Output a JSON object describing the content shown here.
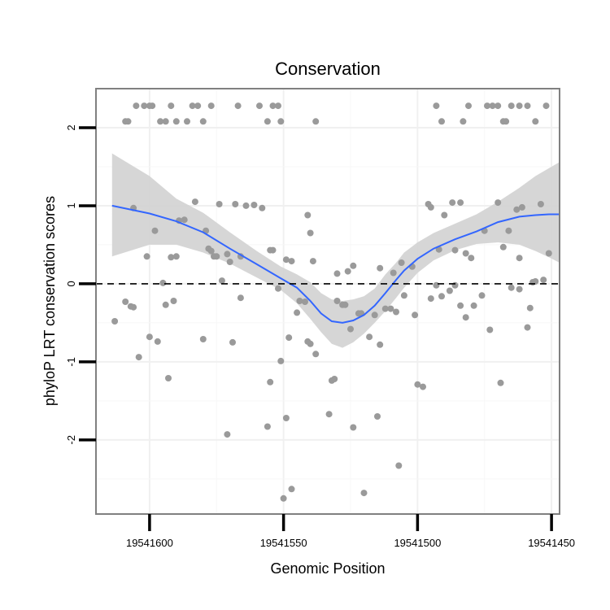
{
  "chart_data": {
    "type": "scatter",
    "title": "Conservation",
    "xlabel": "Genomic Position",
    "ylabel": "phyloP LRT conservation scores",
    "x_reversed": true,
    "xlim": [
      19541620,
      19541447
    ],
    "ylim": [
      -2.95,
      2.5
    ],
    "x_ticks": [
      19541600,
      19541550,
      19541500,
      19541450
    ],
    "x_tick_labels": [
      "19541600",
      "19541550",
      "19541500",
      "19541450"
    ],
    "y_ticks": [
      -2,
      -1,
      0,
      1,
      2
    ],
    "y_tick_labels": [
      "-2",
      "-1",
      "0",
      "1",
      "2"
    ],
    "reference_line": {
      "y": 0,
      "style": "dashed"
    },
    "points": [
      [
        19541609,
        2.08
      ],
      [
        19541608,
        2.08
      ],
      [
        19541605,
        2.28
      ],
      [
        19541602,
        2.28
      ],
      [
        19541600,
        2.28
      ],
      [
        19541599,
        2.28
      ],
      [
        19541596,
        2.08
      ],
      [
        19541594,
        2.08
      ],
      [
        19541592,
        2.28
      ],
      [
        19541590,
        2.08
      ],
      [
        19541586,
        2.08
      ],
      [
        19541584,
        2.28
      ],
      [
        19541582,
        2.28
      ],
      [
        19541580,
        2.08
      ],
      [
        19541577,
        2.28
      ],
      [
        19541567,
        2.28
      ],
      [
        19541559,
        2.28
      ],
      [
        19541556,
        2.08
      ],
      [
        19541554,
        2.28
      ],
      [
        19541552,
        2.28
      ],
      [
        19541551,
        2.08
      ],
      [
        19541538,
        2.08
      ],
      [
        19541493,
        2.28
      ],
      [
        19541491,
        2.08
      ],
      [
        19541483,
        2.08
      ],
      [
        19541481,
        2.28
      ],
      [
        19541474,
        2.28
      ],
      [
        19541472,
        2.28
      ],
      [
        19541470,
        2.28
      ],
      [
        19541468,
        2.08
      ],
      [
        19541467,
        2.08
      ],
      [
        19541465,
        2.28
      ],
      [
        19541462,
        2.28
      ],
      [
        19541459,
        2.28
      ],
      [
        19541456,
        2.08
      ],
      [
        19541452,
        2.28
      ],
      [
        19541606,
        0.97
      ],
      [
        19541601,
        0.35
      ],
      [
        19541598,
        0.68
      ],
      [
        19541592,
        0.34
      ],
      [
        19541590,
        0.35
      ],
      [
        19541587,
        0.82
      ],
      [
        19541583,
        1.05
      ],
      [
        19541579,
        0.68
      ],
      [
        19541578,
        0.45
      ],
      [
        19541577,
        0.42
      ],
      [
        19541575,
        0.35
      ],
      [
        19541574,
        1.02
      ],
      [
        19541573,
        0.04
      ],
      [
        19541571,
        0.38
      ],
      [
        19541570,
        0.28
      ],
      [
        19541568,
        1.02
      ],
      [
        19541566,
        0.35
      ],
      [
        19541564,
        1.0
      ],
      [
        19541561,
        1.01
      ],
      [
        19541558,
        0.97
      ],
      [
        19541555,
        0.43
      ],
      [
        19541554,
        0.43
      ],
      [
        19541549,
        0.31
      ],
      [
        19541547,
        0.29
      ],
      [
        19541541,
        0.88
      ],
      [
        19541540,
        0.65
      ],
      [
        19541539,
        0.29
      ],
      [
        19541530,
        0.13
      ],
      [
        19541526,
        0.16
      ],
      [
        19541524,
        0.23
      ],
      [
        19541514,
        0.2
      ],
      [
        19541509,
        0.14
      ],
      [
        19541506,
        0.27
      ],
      [
        19541502,
        0.22
      ],
      [
        19541496,
        1.02
      ],
      [
        19541495,
        0.98
      ],
      [
        19541492,
        0.44
      ],
      [
        19541490,
        0.88
      ],
      [
        19541487,
        1.04
      ],
      [
        19541486,
        0.43
      ],
      [
        19541484,
        1.04
      ],
      [
        19541482,
        0.39
      ],
      [
        19541480,
        0.33
      ],
      [
        19541475,
        0.68
      ],
      [
        19541470,
        1.04
      ],
      [
        19541468,
        0.47
      ],
      [
        19541466,
        0.68
      ],
      [
        19541463,
        0.95
      ],
      [
        19541462,
        0.33
      ],
      [
        19541461,
        0.98
      ],
      [
        19541456,
        0.03
      ],
      [
        19541454,
        1.02
      ],
      [
        19541453,
        0.05
      ],
      [
        19541451,
        0.39
      ],
      [
        19541613,
        -0.48
      ],
      [
        19541609,
        -0.23
      ],
      [
        19541607,
        -0.29
      ],
      [
        19541606,
        -0.3
      ],
      [
        19541604,
        -0.94
      ],
      [
        19541600,
        -0.68
      ],
      [
        19541597,
        -0.74
      ],
      [
        19541595,
        0.01
      ],
      [
        19541594,
        -0.27
      ],
      [
        19541593,
        -1.21
      ],
      [
        19541591,
        -0.22
      ],
      [
        19541589,
        0.81
      ],
      [
        19541580,
        -0.71
      ],
      [
        19541576,
        0.35
      ],
      [
        19541571,
        -1.93
      ],
      [
        19541569,
        -0.75
      ],
      [
        19541566,
        -0.18
      ],
      [
        19541556,
        -1.83
      ],
      [
        19541555,
        -1.26
      ],
      [
        19541552,
        -0.06
      ],
      [
        19541551,
        -0.99
      ],
      [
        19541550,
        -2.75
      ],
      [
        19541549,
        -1.72
      ],
      [
        19541548,
        -0.69
      ],
      [
        19541547,
        -2.63
      ],
      [
        19541545,
        -0.37
      ],
      [
        19541544,
        -0.22
      ],
      [
        19541542,
        -0.23
      ],
      [
        19541541,
        -0.74
      ],
      [
        19541540,
        -0.77
      ],
      [
        19541538,
        -0.9
      ],
      [
        19541533,
        -1.67
      ],
      [
        19541532,
        -1.24
      ],
      [
        19541531,
        -1.22
      ],
      [
        19541530,
        -0.22
      ],
      [
        19541528,
        -0.27
      ],
      [
        19541527,
        -0.27
      ],
      [
        19541525,
        -0.58
      ],
      [
        19541524,
        -1.84
      ],
      [
        19541522,
        -0.38
      ],
      [
        19541521,
        -0.38
      ],
      [
        19541520,
        -2.68
      ],
      [
        19541518,
        -0.68
      ],
      [
        19541516,
        -0.4
      ],
      [
        19541515,
        -1.7
      ],
      [
        19541514,
        -0.78
      ],
      [
        19541512,
        -0.32
      ],
      [
        19541510,
        -0.32
      ],
      [
        19541508,
        -0.36
      ],
      [
        19541507,
        -2.33
      ],
      [
        19541505,
        -0.15
      ],
      [
        19541501,
        -0.4
      ],
      [
        19541500,
        -1.29
      ],
      [
        19541498,
        -1.32
      ],
      [
        19541495,
        -0.19
      ],
      [
        19541493,
        -0.02
      ],
      [
        19541491,
        -0.16
      ],
      [
        19541488,
        -0.09
      ],
      [
        19541486,
        -0.02
      ],
      [
        19541484,
        -0.28
      ],
      [
        19541482,
        -0.43
      ],
      [
        19541479,
        -0.28
      ],
      [
        19541476,
        -0.15
      ],
      [
        19541473,
        -0.59
      ],
      [
        19541469,
        -1.27
      ],
      [
        19541465,
        -0.05
      ],
      [
        19541462,
        -0.07
      ],
      [
        19541459,
        -0.56
      ],
      [
        19541458,
        -0.31
      ],
      [
        19541457,
        0.02
      ]
    ],
    "smooth_line": {
      "x": [
        19541614,
        19541600,
        19541590,
        19541580,
        19541570,
        19541560,
        19541551,
        19541545,
        19541540,
        19541536,
        19541532,
        19541528,
        19541524,
        19541520,
        19541516,
        19541512,
        19541508,
        19541505,
        19541500,
        19541494,
        19541486,
        19541478,
        19541470,
        19541462,
        19541456,
        19541451,
        19541447
      ],
      "y": [
        1.0,
        0.9,
        0.8,
        0.66,
        0.45,
        0.25,
        0.07,
        -0.05,
        -0.22,
        -0.38,
        -0.48,
        -0.5,
        -0.47,
        -0.4,
        -0.28,
        -0.12,
        0.05,
        0.17,
        0.32,
        0.45,
        0.57,
        0.67,
        0.79,
        0.86,
        0.88,
        0.89,
        0.89
      ],
      "lower": [
        0.35,
        0.5,
        0.5,
        0.4,
        0.26,
        0.08,
        -0.08,
        -0.25,
        -0.45,
        -0.62,
        -0.77,
        -0.82,
        -0.75,
        -0.64,
        -0.5,
        -0.35,
        -0.18,
        -0.05,
        0.14,
        0.3,
        0.43,
        0.51,
        0.53,
        0.5,
        0.42,
        0.34,
        0.27
      ],
      "upper": [
        1.67,
        1.38,
        1.09,
        0.91,
        0.66,
        0.42,
        0.22,
        0.12,
        0.02,
        -0.12,
        -0.2,
        -0.22,
        -0.2,
        -0.16,
        -0.06,
        0.12,
        0.27,
        0.4,
        0.53,
        0.65,
        0.77,
        0.89,
        1.05,
        1.23,
        1.38,
        1.48,
        1.56
      ]
    },
    "colors": {
      "points": "#9a9a9a",
      "smooth": "#3366ff",
      "ribbon": "#d2d2d2",
      "border": "#808080"
    }
  }
}
